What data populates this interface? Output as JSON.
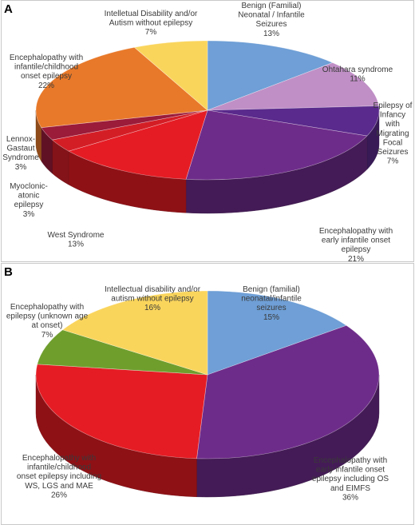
{
  "chart_data": [
    {
      "panel": "A",
      "type": "pie",
      "style": "3d",
      "slices": [
        {
          "label": [
            "Benign (Familial)",
            "Neonatal / Infantile",
            "Seizures"
          ],
          "value": 13,
          "pct": "13%",
          "color": "#6f9fd6"
        },
        {
          "label": [
            "Ohtahara syndrome"
          ],
          "value": 11,
          "pct": "11%",
          "color": "#c08fc6"
        },
        {
          "label": [
            "Epilepsy of",
            "Infancy",
            "with",
            "Migrating",
            "Focal",
            "Seizures"
          ],
          "value": 7,
          "pct": "7%",
          "color": "#5a2a8c"
        },
        {
          "label": [
            "Encephalopathy with",
            "early infantile onset",
            "epilepsy"
          ],
          "value": 21,
          "pct": "21%",
          "color": "#6e2c8a"
        },
        {
          "label": [
            "West Syndrome"
          ],
          "value": 13,
          "pct": "13%",
          "color": "#e51c24"
        },
        {
          "label": [
            "Myoclonic-",
            "atonic",
            "epilepsy"
          ],
          "value": 3,
          "pct": "3%",
          "color": "#d41e26"
        },
        {
          "label": [
            "Lennox-",
            "Gastaut",
            "Syndrome"
          ],
          "value": 3,
          "pct": "3%",
          "color": "#9b1b3a"
        },
        {
          "label": [
            "Encephalopathy with",
            "infantile/childhood",
            "onset epilepsy"
          ],
          "value": 22,
          "pct": "22%",
          "color": "#e8792a"
        },
        {
          "label": [
            "Intelletual Disability and/or",
            "Autism without epilepsy"
          ],
          "value": 7,
          "pct": "7%",
          "color": "#fad55c"
        }
      ]
    },
    {
      "panel": "B",
      "type": "pie",
      "style": "3d",
      "slices": [
        {
          "label": [
            "Benign (familial)",
            "neonatal/infantile",
            "seizures"
          ],
          "value": 15,
          "pct": "15%",
          "color": "#6f9fd6"
        },
        {
          "label": [
            "Encephalopathy with",
            "early infantile onset",
            "epilepsy including OS",
            "and EIMFS"
          ],
          "value": 36,
          "pct": "36%",
          "color": "#6e2c8a"
        },
        {
          "label": [
            "Encephalopathy with",
            "infantile/childhood",
            "onset epilepsy including",
            "WS, LGS and MAE"
          ],
          "value": 26,
          "pct": "26%",
          "color": "#e51c24"
        },
        {
          "label": [
            "Encephalopathy with",
            "epilepsy (unknown age",
            "at onset)"
          ],
          "value": 7,
          "pct": "7%",
          "color": "#6f9e2d"
        },
        {
          "label": [
            "Intellectual disability and/or",
            "autism without epilepsy"
          ],
          "value": 16,
          "pct": "16%",
          "color": "#fad55c"
        }
      ]
    }
  ]
}
